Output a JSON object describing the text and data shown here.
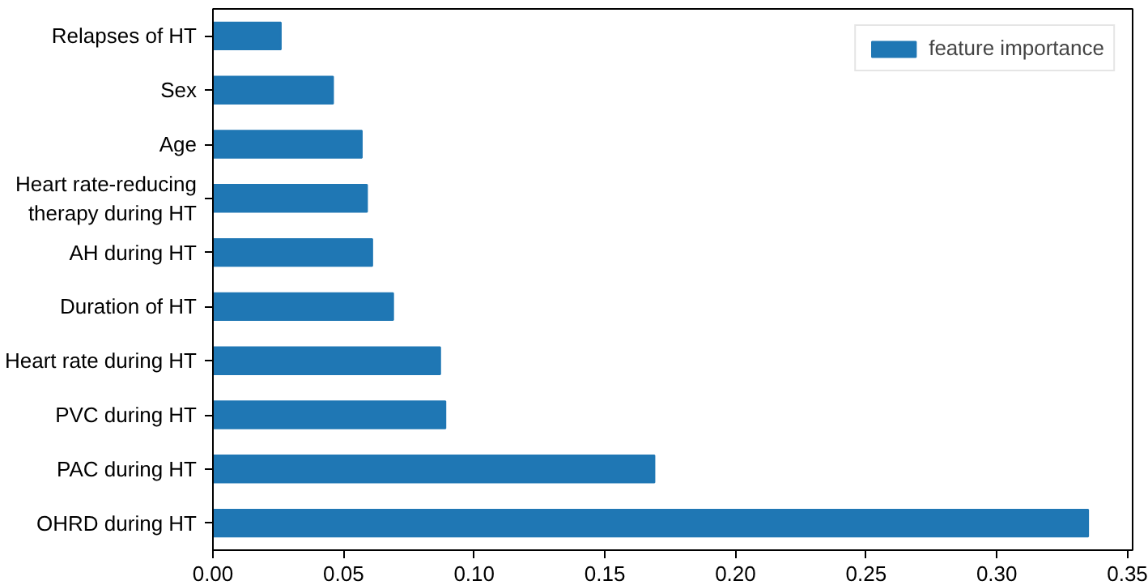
{
  "chart_data": {
    "type": "bar",
    "orientation": "horizontal",
    "categories": [
      "Relapses of HT",
      "Sex",
      "Age",
      "Heart rate-reducing\ntherapy during HT",
      "AH during HT",
      "Duration of HT",
      "Heart rate during HT",
      "PVC during HT",
      "PAC during HT",
      "OHRD during HT"
    ],
    "series": [
      {
        "name": "feature importance",
        "color": "#1f77b4",
        "values": [
          0.026,
          0.046,
          0.057,
          0.059,
          0.061,
          0.069,
          0.087,
          0.089,
          0.169,
          0.335
        ]
      }
    ],
    "xlim": [
      0,
      0.352
    ],
    "xticks": [
      {
        "value": 0,
        "label": "0.00"
      },
      {
        "value": 0.05,
        "label": "0.05"
      },
      {
        "value": 0.1,
        "label": "0.10"
      },
      {
        "value": 0.15,
        "label": "0.15"
      },
      {
        "value": 0.2,
        "label": "0.20"
      },
      {
        "value": 0.25,
        "label": "0.25"
      },
      {
        "value": 0.3,
        "label": "0.30"
      },
      {
        "value": 0.35,
        "label": "0.35"
      }
    ],
    "legend": "top right",
    "grid": false
  }
}
